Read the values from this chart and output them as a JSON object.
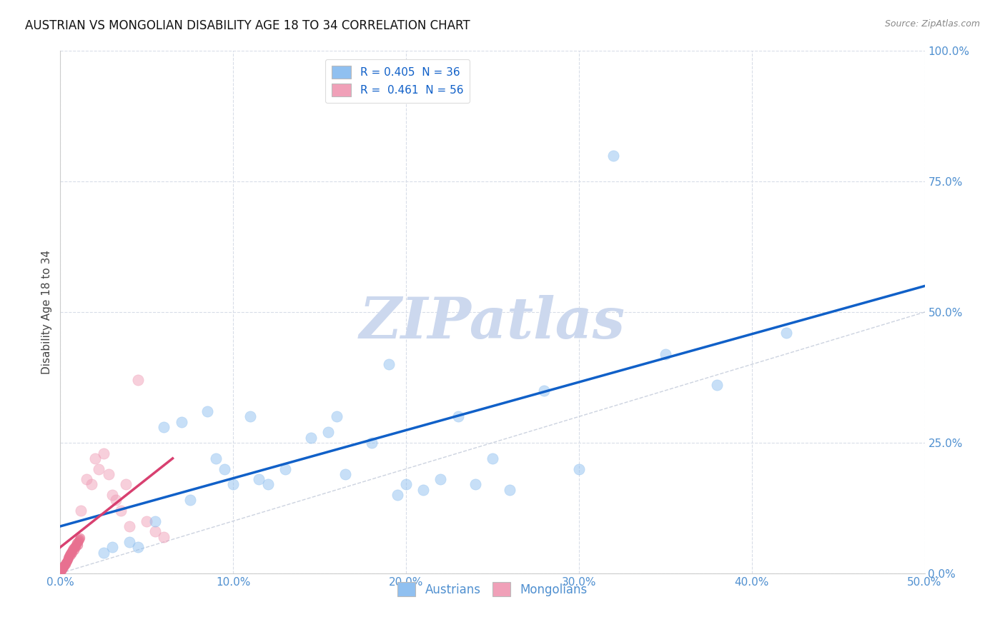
{
  "title": "AUSTRIAN VS MONGOLIAN DISABILITY AGE 18 TO 34 CORRELATION CHART",
  "source": "Source: ZipAtlas.com",
  "ylabel": "Disability Age 18 to 34",
  "xlim": [
    0.0,
    0.5
  ],
  "ylim": [
    0.0,
    1.0
  ],
  "austrians_x": [
    0.025,
    0.03,
    0.04,
    0.045,
    0.06,
    0.07,
    0.085,
    0.095,
    0.1,
    0.11,
    0.115,
    0.13,
    0.145,
    0.155,
    0.165,
    0.18,
    0.195,
    0.2,
    0.21,
    0.22,
    0.24,
    0.25,
    0.28,
    0.3,
    0.32,
    0.35,
    0.38,
    0.42,
    0.055,
    0.075,
    0.09,
    0.12,
    0.16,
    0.23,
    0.26,
    0.19
  ],
  "austrians_y": [
    0.04,
    0.05,
    0.06,
    0.05,
    0.28,
    0.29,
    0.31,
    0.2,
    0.17,
    0.3,
    0.18,
    0.2,
    0.26,
    0.27,
    0.19,
    0.25,
    0.15,
    0.17,
    0.16,
    0.18,
    0.17,
    0.22,
    0.35,
    0.2,
    0.8,
    0.42,
    0.36,
    0.46,
    0.1,
    0.14,
    0.22,
    0.17,
    0.3,
    0.3,
    0.16,
    0.4
  ],
  "mongolians_tight_x": [
    0.0005,
    0.0008,
    0.001,
    0.0012,
    0.0015,
    0.0018,
    0.002,
    0.0022,
    0.0025,
    0.003,
    0.0032,
    0.0035,
    0.004,
    0.0042,
    0.0045,
    0.005,
    0.0052,
    0.0055,
    0.006,
    0.0065,
    0.007,
    0.0075,
    0.008,
    0.0085,
    0.009,
    0.0095,
    0.01,
    0.0105,
    0.011,
    0.0115,
    0.001,
    0.002,
    0.003,
    0.004,
    0.005,
    0.006,
    0.007,
    0.008,
    0.009,
    0.01
  ],
  "mongolians_tight_y": [
    0.005,
    0.007,
    0.008,
    0.009,
    0.01,
    0.012,
    0.013,
    0.015,
    0.016,
    0.018,
    0.02,
    0.022,
    0.025,
    0.027,
    0.03,
    0.032,
    0.035,
    0.038,
    0.04,
    0.042,
    0.045,
    0.048,
    0.05,
    0.052,
    0.055,
    0.058,
    0.06,
    0.062,
    0.065,
    0.068,
    0.01,
    0.015,
    0.02,
    0.025,
    0.03,
    0.035,
    0.04,
    0.045,
    0.05,
    0.055
  ],
  "mongolians_spread_x": [
    0.012,
    0.015,
    0.018,
    0.02,
    0.022,
    0.025,
    0.028,
    0.03,
    0.032,
    0.035,
    0.038,
    0.04,
    0.045,
    0.05,
    0.055,
    0.06
  ],
  "mongolians_spread_y": [
    0.12,
    0.18,
    0.17,
    0.22,
    0.2,
    0.23,
    0.19,
    0.15,
    0.14,
    0.12,
    0.17,
    0.09,
    0.37,
    0.1,
    0.08,
    0.07
  ],
  "blue_line_x": [
    0.0,
    0.5
  ],
  "blue_line_y": [
    0.09,
    0.55
  ],
  "pink_line_x": [
    0.0,
    0.065
  ],
  "pink_line_y": [
    0.05,
    0.22
  ],
  "ref_line_x": [
    0.0,
    1.0
  ],
  "ref_line_y": [
    0.0,
    1.0
  ],
  "watermark": "ZIPatlas",
  "watermark_color": "#ccd8ee",
  "scatter_alpha": 0.5,
  "scatter_size": 120,
  "austrian_color": "#90c0f0",
  "mongolian_color": "#f0a0b8",
  "mongolian_tight_color": "#e87090",
  "blue_line_color": "#1060c8",
  "pink_line_color": "#d84070",
  "ref_line_color": "#c0c8d8",
  "grid_color": "#d8dde8",
  "background_color": "#ffffff",
  "title_fontsize": 12,
  "label_fontsize": 11,
  "tick_fontsize": 11,
  "tick_color": "#5090d0"
}
